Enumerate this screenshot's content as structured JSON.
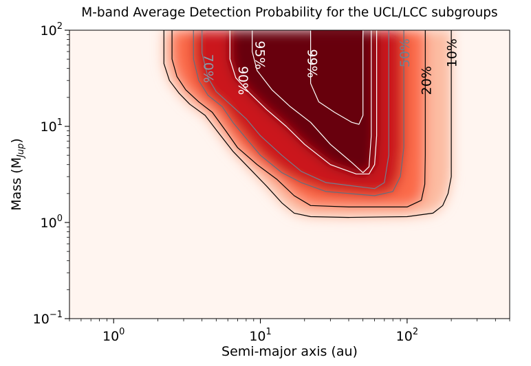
{
  "chart_data": {
    "type": "heatmap",
    "title": "M-band Average Detection Probability for the UCL/LCC subgroups",
    "xlabel": "Semi-major axis (au)",
    "ylabel": {
      "main": "Mass (M",
      "sub": "Jup",
      "close": ")"
    },
    "xscale": "log",
    "yscale": "log",
    "xlim": [
      0.5,
      500
    ],
    "ylim": [
      0.1,
      100
    ],
    "x_tick_labels": [
      {
        "value": 1,
        "base": "10",
        "exp": "0"
      },
      {
        "value": 10,
        "base": "10",
        "exp": "1"
      },
      {
        "value": 100,
        "base": "10",
        "exp": "2"
      }
    ],
    "y_tick_labels": [
      {
        "value": 0.1,
        "base": "10",
        "exp": "−1"
      },
      {
        "value": 1,
        "base": "10",
        "exp": "0"
      },
      {
        "value": 10,
        "base": "10",
        "exp": "1"
      },
      {
        "value": 100,
        "base": "10",
        "exp": "2"
      }
    ],
    "colormap": [
      "#fff5f0",
      "#fcbba1",
      "#fb6a4a",
      "#cb181d",
      "#67000d"
    ],
    "contours": [
      {
        "level": "10%",
        "color": "#000000",
        "points": [
          [
            2.2,
            100
          ],
          [
            2.2,
            45
          ],
          [
            2.4,
            30
          ],
          [
            2.8,
            22
          ],
          [
            3.3,
            17
          ],
          [
            4.2,
            13
          ],
          [
            5.2,
            8.5
          ],
          [
            6.5,
            5.5
          ],
          [
            8.5,
            3.6
          ],
          [
            11,
            2.4
          ],
          [
            14,
            1.6
          ],
          [
            17,
            1.25
          ],
          [
            22,
            1.15
          ],
          [
            40,
            1.13
          ],
          [
            100,
            1.15
          ],
          [
            150,
            1.25
          ],
          [
            175,
            1.5
          ],
          [
            190,
            2
          ],
          [
            200,
            3
          ],
          [
            200,
            100
          ]
        ]
      },
      {
        "level": "20%",
        "color": "#000000",
        "points": [
          [
            2.5,
            100
          ],
          [
            2.5,
            50
          ],
          [
            2.7,
            33
          ],
          [
            3.1,
            24
          ],
          [
            3.8,
            18
          ],
          [
            4.7,
            14
          ],
          [
            5.8,
            9
          ],
          [
            7,
            6
          ],
          [
            9.5,
            4
          ],
          [
            13,
            2.8
          ],
          [
            17,
            1.9
          ],
          [
            22,
            1.5
          ],
          [
            40,
            1.45
          ],
          [
            100,
            1.45
          ],
          [
            125,
            1.7
          ],
          [
            132,
            2.5
          ],
          [
            133,
            5
          ],
          [
            133,
            100
          ]
        ]
      },
      {
        "level": "50%",
        "color": "#607080",
        "points": [
          [
            3.5,
            100
          ],
          [
            3.5,
            50
          ],
          [
            3.8,
            30
          ],
          [
            4.4,
            21
          ],
          [
            5.5,
            16
          ],
          [
            6.5,
            11
          ],
          [
            8,
            7.5
          ],
          [
            10,
            5
          ],
          [
            14,
            3.3
          ],
          [
            19,
            2.6
          ],
          [
            28,
            2.1
          ],
          [
            60,
            1.9
          ],
          [
            80,
            2.1
          ],
          [
            90,
            3
          ],
          [
            95,
            6
          ],
          [
            95,
            100
          ]
        ]
      },
      {
        "level": "70%",
        "color": "#708090",
        "points": [
          [
            4.0,
            100
          ],
          [
            4.0,
            58
          ],
          [
            4.4,
            32
          ],
          [
            5.0,
            23
          ],
          [
            6.5,
            16
          ],
          [
            8,
            12
          ],
          [
            10,
            8
          ],
          [
            14,
            5
          ],
          [
            19,
            3.4
          ],
          [
            28,
            2.6
          ],
          [
            60,
            2.25
          ],
          [
            70,
            2.6
          ],
          [
            75,
            5
          ],
          [
            75,
            100
          ]
        ]
      },
      {
        "level": "90%",
        "color": "#ffffff",
        "points": [
          [
            6.2,
            100
          ],
          [
            6.2,
            50
          ],
          [
            6.8,
            32
          ],
          [
            8.5,
            22
          ],
          [
            11,
            15
          ],
          [
            15,
            10
          ],
          [
            20,
            6.5
          ],
          [
            30,
            4
          ],
          [
            45,
            3.2
          ],
          [
            55,
            3.2
          ],
          [
            60,
            4
          ],
          [
            62,
            8
          ],
          [
            62,
            100
          ]
        ]
      },
      {
        "level": "95%",
        "color": "#ffffff",
        "points": [
          [
            8.8,
            100
          ],
          [
            8.8,
            60
          ],
          [
            9.5,
            38
          ],
          [
            12,
            24
          ],
          [
            16,
            16
          ],
          [
            22,
            11
          ],
          [
            30,
            6.5
          ],
          [
            42,
            4.2
          ],
          [
            50,
            3.3
          ],
          [
            55,
            3.8
          ],
          [
            57,
            8
          ],
          [
            57,
            100
          ]
        ]
      },
      {
        "level": "99%",
        "color": "#ffffff",
        "points": [
          [
            22,
            100
          ],
          [
            22,
            28
          ],
          [
            25,
            18
          ],
          [
            32,
            14
          ],
          [
            42,
            11
          ],
          [
            47,
            10.5
          ],
          [
            50,
            13
          ],
          [
            50,
            100
          ]
        ]
      }
    ],
    "contour_labels": [
      {
        "text": "70%",
        "color": "#8a9aa8",
        "x": 4.4,
        "y": 40,
        "rotate": 90
      },
      {
        "text": "90%",
        "color": "#ffffff",
        "x": 7.6,
        "y": 30,
        "rotate": 90
      },
      {
        "text": "95%",
        "color": "#ffffff",
        "x": 9.9,
        "y": 55,
        "rotate": 90
      },
      {
        "text": "99%",
        "color": "#ffffff",
        "x": 22.5,
        "y": 45,
        "rotate": 90
      },
      {
        "text": "50%",
        "color": "#708090",
        "x": 97,
        "y": 58,
        "rotate": -90
      },
      {
        "text": "20%",
        "color": "#000000",
        "x": 136,
        "y": 30,
        "rotate": -90
      },
      {
        "text": "10%",
        "color": "#000000",
        "x": 203,
        "y": 58,
        "rotate": -90
      }
    ]
  }
}
